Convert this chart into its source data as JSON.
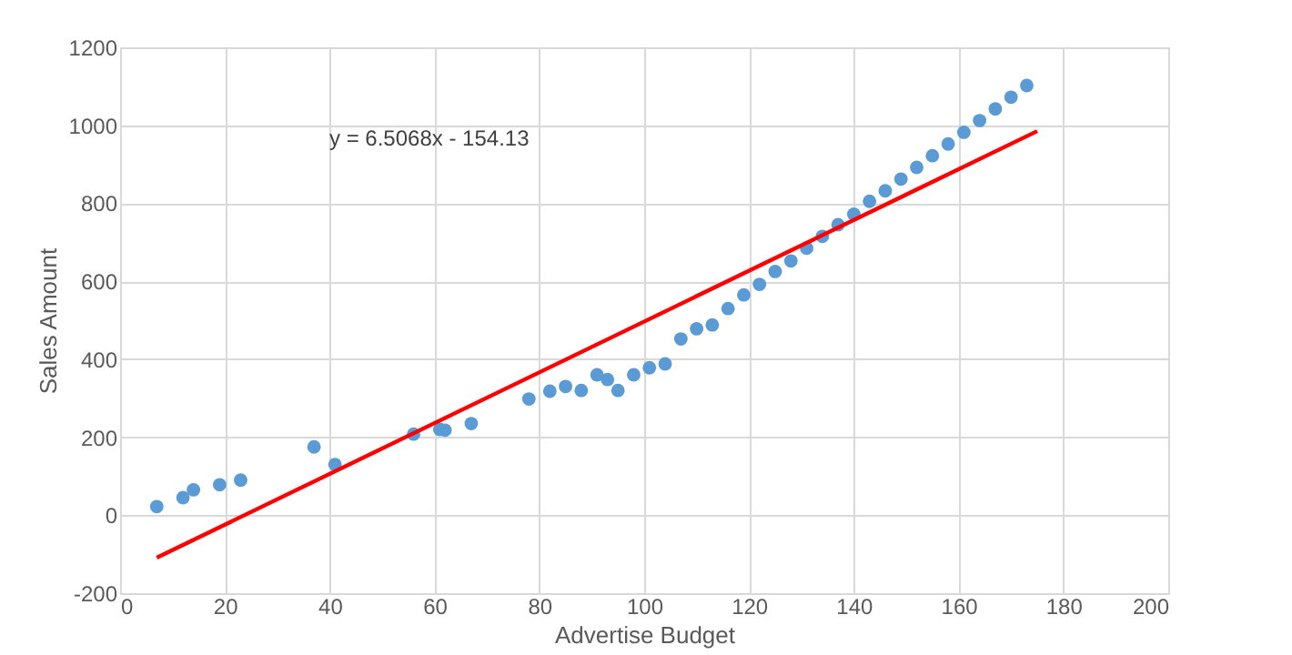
{
  "chart_data": {
    "type": "scatter",
    "xlabel": "Advertise Budget",
    "ylabel": "Sales Amount",
    "xlim": [
      0,
      200
    ],
    "xticks": [
      0,
      20,
      40,
      60,
      80,
      100,
      120,
      140,
      160,
      180,
      200
    ],
    "ylim": [
      -200,
      1200
    ],
    "yticks": [
      -200,
      0,
      200,
      400,
      600,
      800,
      1000,
      1200
    ],
    "grid": true,
    "annotations": [
      "y = 6.5068x - 154.13"
    ],
    "series": [
      {
        "color": "#5b9bd5",
        "marker": "circle",
        "x": [
          7,
          12,
          14,
          19,
          23,
          37,
          41,
          56,
          61,
          62,
          67,
          78,
          82,
          85,
          88,
          91,
          93,
          95,
          98,
          101,
          104,
          107,
          110,
          113,
          116,
          119,
          122,
          125,
          128,
          131,
          134,
          137,
          140,
          143,
          146,
          149,
          152,
          155,
          158,
          161,
          164,
          167,
          170,
          173
        ],
        "values": [
          22,
          45,
          65,
          78,
          90,
          175,
          130,
          208,
          220,
          218,
          235,
          298,
          318,
          330,
          320,
          360,
          348,
          320,
          360,
          378,
          388,
          452,
          478,
          488,
          530,
          565,
          592,
          625,
          652,
          685,
          715,
          745,
          772,
          805,
          832,
          862,
          892,
          922,
          952,
          982,
          1012,
          1042,
          1072,
          1102
        ]
      },
      {
        "type": "line",
        "color": "#ff0000",
        "x": [
          7,
          175
        ],
        "values": [
          -109,
          985
        ]
      }
    ]
  }
}
